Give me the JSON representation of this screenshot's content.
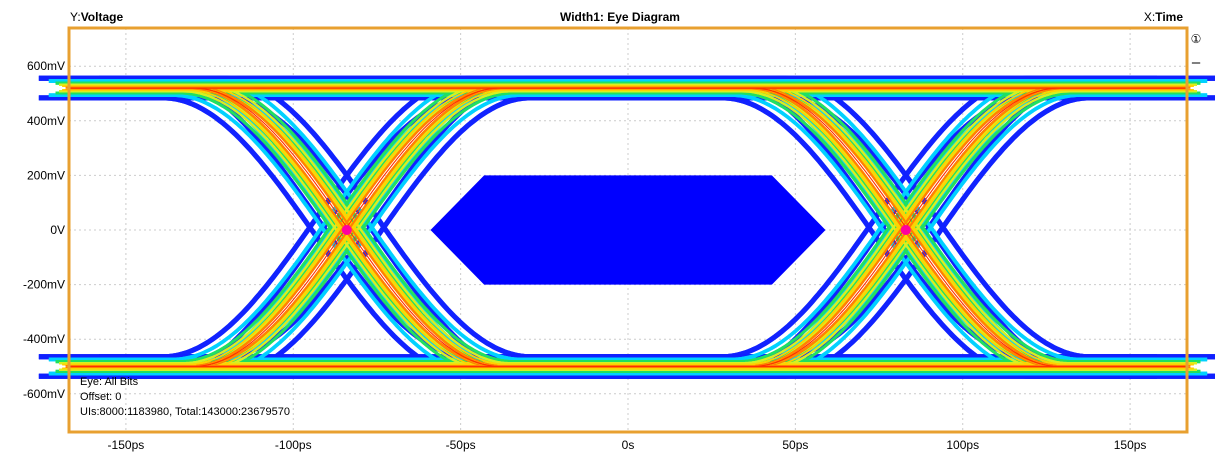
{
  "chart_data": {
    "type": "heatmap",
    "title": "Width1: Eye Diagram",
    "ylabel_prefix": "Y:",
    "ylabel": "Voltage",
    "xlabel_prefix": "X:",
    "xlabel": "Time",
    "x_ticks": [
      "-150ps",
      "-100ps",
      "-50ps",
      "0s",
      "50ps",
      "100ps",
      "150ps"
    ],
    "x_tick_values": [
      -150,
      -100,
      -50,
      0,
      50,
      100,
      150
    ],
    "y_ticks": [
      "600mV",
      "400mV",
      "200mV",
      "0V",
      "-200mV",
      "-400mV",
      "-600mV"
    ],
    "y_tick_values": [
      600,
      400,
      200,
      0,
      -200,
      -400,
      -600
    ],
    "xlim": [
      -167,
      167
    ],
    "ylim": [
      -740,
      740
    ],
    "x_units": "ps",
    "y_units": "mV",
    "high_level_mV": 520,
    "low_level_mV": -500,
    "crossing_points": [
      {
        "x": -84,
        "y": 0
      },
      {
        "x": 83,
        "y": 0
      }
    ],
    "mask": {
      "name": "eye mask",
      "color": "#0000ff",
      "points": [
        [
          -59,
          0
        ],
        [
          -43,
          200
        ],
        [
          43,
          200
        ],
        [
          59,
          0
        ],
        [
          43,
          -200
        ],
        [
          -43,
          -200
        ]
      ]
    },
    "grid": true,
    "colormap": [
      "#1020ff",
      "#00d0ff",
      "#20e060",
      "#d8f020",
      "#ffd000",
      "#ff8000",
      "#ff3000"
    ]
  },
  "info": {
    "eye": "Eye: All Bits",
    "offset": "Offset: 0",
    "counts": "UIs:8000:1183980, Total:143000:23679570"
  },
  "controls": {
    "marker": "①",
    "minus": "–"
  },
  "colors": {
    "frame": "#e8a030",
    "grid": "#cccccc",
    "background": "#ffffff"
  }
}
